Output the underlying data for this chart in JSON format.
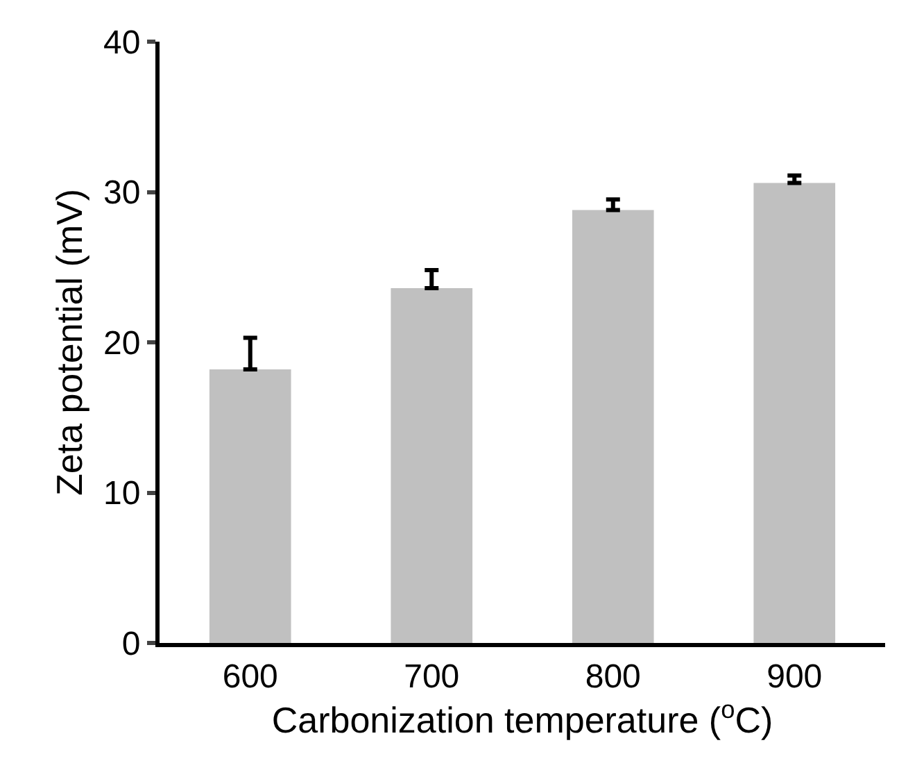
{
  "chart_data": {
    "type": "bar",
    "xlabel": "Carbonization temperature ($^{o}$C)",
    "ylabel": "Zeta potential (mV)",
    "categories": [
      "600",
      "700",
      "800",
      "900"
    ],
    "values": [
      18.2,
      23.6,
      28.8,
      30.6
    ],
    "color": "#c0c0c0",
    "errors": [
      [
        18.2,
        20.3
      ],
      [
        23.6,
        24.8
      ],
      [
        28.8,
        29.5
      ],
      [
        30.6,
        31.1
      ]
    ],
    "ylim": [
      0,
      40
    ],
    "yticks": [
      0,
      10,
      20,
      30,
      40
    ]
  }
}
